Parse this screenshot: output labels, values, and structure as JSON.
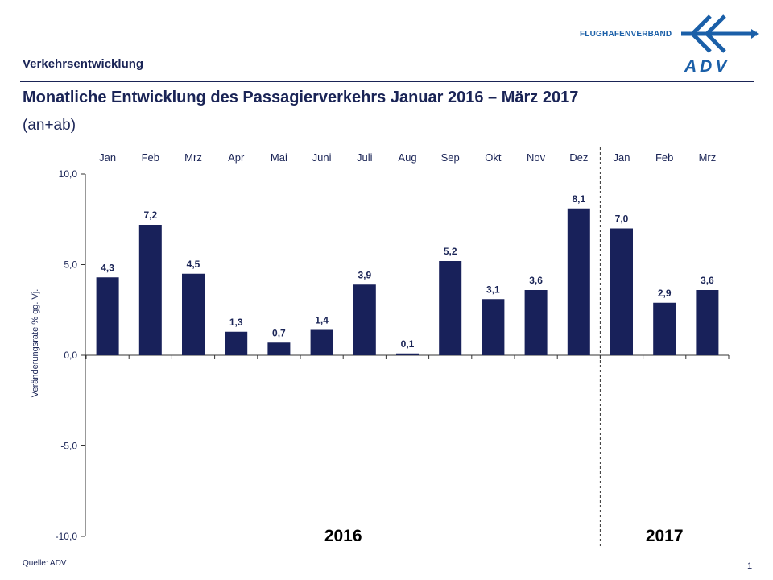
{
  "header": {
    "section": "Verkehrsentwicklung",
    "title": "Monatliche Entwicklung des Passagierverkehrs  Januar 2016 – März 2017",
    "subtitle": "(an+ab)"
  },
  "logo": {
    "brand": "FLUGHAFENVERBAND",
    "name": "ADV"
  },
  "footer": {
    "source": "Quelle: ADV",
    "page": "1"
  },
  "colors": {
    "bar": "#18215a",
    "text": "#1a2456",
    "axis": "#333333",
    "logo": "#1a5fa8"
  },
  "chart_data": {
    "type": "bar",
    "title": "Monatliche Entwicklung des Passagierverkehrs  Januar 2016 – März 2017",
    "ylabel": "Veränderungsrate % gg. Vj.",
    "xlabel": "",
    "categories": [
      "Jan",
      "Feb",
      "Mrz",
      "Apr",
      "Mai",
      "Juni",
      "Juli",
      "Aug",
      "Sep",
      "Okt",
      "Nov",
      "Dez",
      "Jan",
      "Feb",
      "Mrz"
    ],
    "values": [
      4.3,
      7.2,
      4.5,
      1.3,
      0.7,
      1.4,
      3.9,
      0.1,
      5.2,
      3.1,
      3.6,
      8.1,
      7.0,
      2.9,
      3.6
    ],
    "value_labels": [
      "4,3",
      "7,2",
      "4,5",
      "1,3",
      "0,7",
      "1,4",
      "3,9",
      "0,1",
      "5,2",
      "3,1",
      "3,6",
      "8,1",
      "7,0",
      "2,9",
      "3,6"
    ],
    "ylim": [
      -10,
      10
    ],
    "yticks": [
      {
        "value": 10,
        "label": "10,0"
      },
      {
        "value": 5,
        "label": "5,0"
      },
      {
        "value": 0,
        "label": "0,0"
      },
      {
        "value": -5,
        "label": "-5,0"
      },
      {
        "value": -10,
        "label": "-10,0"
      }
    ],
    "year_groups": [
      {
        "label": "2016",
        "from": 0,
        "to": 11
      },
      {
        "label": "2017",
        "from": 12,
        "to": 14
      }
    ],
    "divider_after_index": 11,
    "legend": "none",
    "grid": false
  }
}
